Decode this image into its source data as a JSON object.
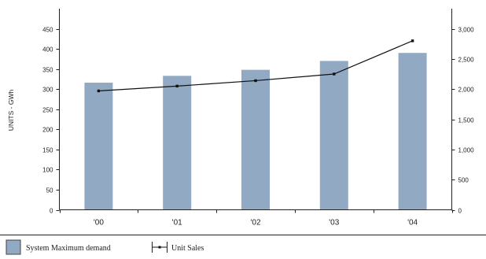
{
  "chart_data": {
    "type": "bar",
    "categories": [
      "'00",
      "'01",
      "'02",
      "'03",
      "'04"
    ],
    "ylabel": "UNITS - GWh",
    "ylim": [
      0,
      500
    ],
    "y_ticks": [
      0,
      50,
      100,
      150,
      200,
      250,
      300,
      350,
      400,
      450
    ],
    "y2lim": [
      0,
      3333
    ],
    "y2_ticks": [
      "0",
      "500",
      "1,000",
      "1,500",
      "2,000",
      "2,500",
      "3,000"
    ],
    "y2_tick_values": [
      0,
      500,
      1000,
      1500,
      2000,
      2500,
      3000
    ],
    "grid": false,
    "legend_position": "bottom",
    "series": [
      {
        "name": "System Maximum demand",
        "type": "bar",
        "axis": "left",
        "color": "#92a9c4",
        "values": [
          316,
          333,
          348,
          370,
          390
        ]
      },
      {
        "name": "Unit Sales",
        "type": "line",
        "axis": "right",
        "color": "#111111",
        "values": [
          1970,
          2050,
          2140,
          2250,
          2800
        ]
      }
    ]
  }
}
